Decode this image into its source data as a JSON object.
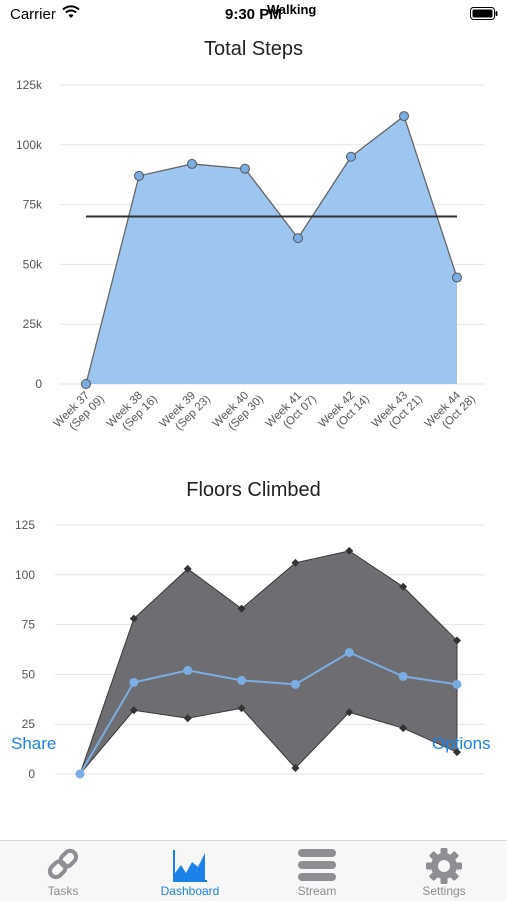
{
  "status_bar": {
    "carrier": "Carrier",
    "time": "9:30 PM",
    "overlay_title": "Walking"
  },
  "steps_chart": {
    "title": "Total Steps",
    "y_ticks": [
      "0",
      "25k",
      "50k",
      "75k",
      "100k",
      "125k"
    ],
    "x_labels": [
      [
        "Week 37",
        "(Sep 09)"
      ],
      [
        "Week 38",
        "(Sep 16)"
      ],
      [
        "Week 39",
        "(Sep 23)"
      ],
      [
        "Week 40",
        "(Sep 30)"
      ],
      [
        "Week 41",
        "(Oct 07)"
      ],
      [
        "Week 42",
        "(Oct 14)"
      ],
      [
        "Week 43",
        "(Oct 21)"
      ],
      [
        "Week 44",
        "(Oct 28)"
      ]
    ]
  },
  "floors_chart": {
    "title": "Floors Climbed",
    "y_ticks": [
      "0",
      "25",
      "50",
      "75",
      "100",
      "125"
    ]
  },
  "buttons": {
    "share": "Share",
    "options": "Options"
  },
  "tabs": [
    {
      "label": "Tasks",
      "icon": "link-icon"
    },
    {
      "label": "Dashboard",
      "icon": "area-chart-icon",
      "active": true
    },
    {
      "label": "Stream",
      "icon": "stream-icon"
    },
    {
      "label": "Settings",
      "icon": "gear-icon"
    }
  ],
  "chart_data": [
    {
      "type": "area",
      "title": "Total Steps",
      "categories": [
        "Week 37 (Sep 09)",
        "Week 38 (Sep 16)",
        "Week 39 (Sep 23)",
        "Week 40 (Sep 30)",
        "Week 41 (Oct 07)",
        "Week 42 (Oct 14)",
        "Week 43 (Oct 21)",
        "Week 44 (Oct 28)"
      ],
      "values": [
        0,
        87000,
        92000,
        90000,
        61000,
        95000,
        112000,
        44500
      ],
      "reference_line": 70000,
      "ylim": [
        0,
        125000
      ],
      "grid": true,
      "colors": {
        "fill": "#9cc6ef",
        "line": "#666666",
        "point": "#7aaee3",
        "reference": "#333333"
      }
    },
    {
      "type": "area",
      "title": "Floors Climbed",
      "x_count": 8,
      "series": [
        {
          "values": [
            0,
            78,
            103,
            83,
            106,
            112,
            94,
            67
          ]
        },
        {
          "values": [
            0,
            32,
            28,
            33,
            3,
            31,
            23,
            11
          ]
        },
        {
          "values": [
            0,
            46,
            52,
            47,
            45,
            61,
            49,
            45
          ]
        }
      ],
      "ylim": [
        0,
        125
      ],
      "grid": true,
      "colors": {
        "band": "#6e6d72",
        "band_edge": "#3a3a3a",
        "mean_line": "#7aaee3"
      }
    }
  ]
}
